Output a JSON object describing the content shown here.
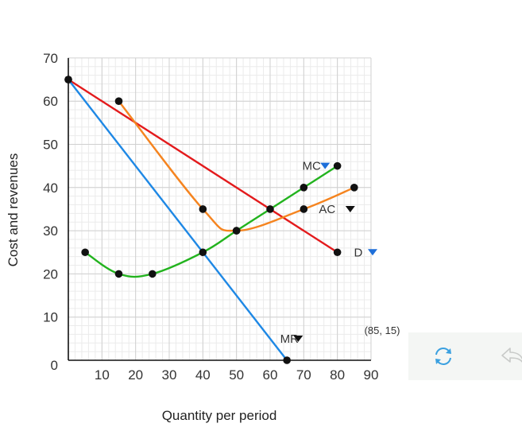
{
  "chart_data": {
    "type": "line",
    "xlabel": "Quantity per period",
    "ylabel": "Cost and revenues",
    "xlim": [
      0,
      90
    ],
    "ylim": [
      0,
      70
    ],
    "x_ticks": [
      "10",
      "20",
      "30",
      "40",
      "50",
      "60",
      "70",
      "80",
      "90"
    ],
    "y_ticks": [
      "0",
      "10",
      "20",
      "30",
      "40",
      "50",
      "60",
      "70"
    ],
    "grid": true,
    "series": [
      {
        "name": "D",
        "color": "#e31a1c",
        "smooth": false,
        "points": [
          [
            0,
            65
          ],
          [
            80,
            25
          ]
        ]
      },
      {
        "name": "MR",
        "color": "#1e88e5",
        "smooth": false,
        "points": [
          [
            0,
            65
          ],
          [
            65,
            0
          ]
        ]
      },
      {
        "name": "AC",
        "color": "#f5841f",
        "smooth": true,
        "points": [
          [
            15,
            60
          ],
          [
            40,
            35
          ],
          [
            50,
            30
          ],
          [
            70,
            35
          ],
          [
            85,
            40
          ]
        ]
      },
      {
        "name": "MC",
        "color": "#22b31e",
        "smooth": true,
        "points": [
          [
            5,
            25
          ],
          [
            15,
            20
          ],
          [
            25,
            20
          ],
          [
            40,
            25
          ],
          [
            50,
            30
          ],
          [
            60,
            35
          ],
          [
            70,
            40
          ],
          [
            80,
            45
          ]
        ]
      }
    ],
    "annotations": [
      {
        "text": "(85, 15)",
        "x": 85,
        "y": 15
      }
    ]
  },
  "toolbar": {
    "reset_icon": "refresh-icon",
    "undo_icon": "undo-icon"
  }
}
